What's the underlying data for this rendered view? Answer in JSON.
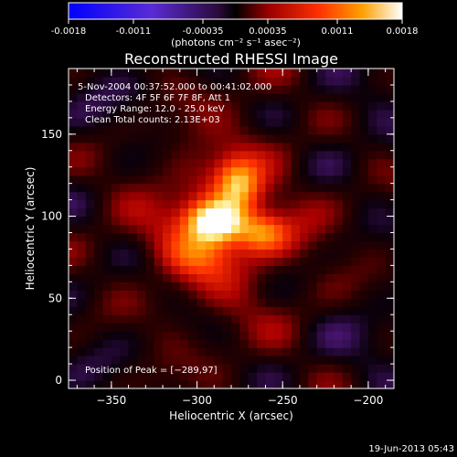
{
  "colorbar": {
    "tick_labels": [
      "-0.0018",
      "-0.0011",
      "-0.00035",
      "0.00035",
      "0.0011",
      "0.0018"
    ],
    "tick_values": [
      -0.0018,
      -0.0011,
      -0.00035,
      0.00035,
      0.0011,
      0.0018
    ],
    "range": [
      -0.0018,
      0.0018
    ],
    "units_label": "(photons cm⁻² s⁻¹ asec⁻²)"
  },
  "chart_data": {
    "type": "heatmap",
    "title": "Reconstructed RHESSI Image",
    "xlabel": "Heliocentric X (arcsec)",
    "ylabel": "Heliocentric Y (arcsec)",
    "xlim": [
      -375,
      -185
    ],
    "ylim": [
      -5,
      190
    ],
    "x_ticks": [
      -350,
      -300,
      -250,
      -200
    ],
    "y_ticks": [
      0,
      50,
      100,
      150
    ],
    "x_tick_labels": [
      "−350",
      "−300",
      "−250",
      "−200"
    ],
    "y_tick_labels": [
      "0",
      "50",
      "100",
      "150"
    ],
    "grid": false,
    "colormap": "RHESSI color table (blue → purple → black → red → orange → yellow → white)",
    "peak": {
      "x": -289,
      "y": 97
    },
    "info_lines": [
      "5-Nov-2004 00:37:52.000 to 00:41:02.000",
      "Detectors: 4F 5F 6F 7F 8F, Att 1",
      "Energy Range: 12.0 - 25.0 keV",
      "Clean     Total counts: 2.13E+03"
    ],
    "peak_label": "Position of Peak = [−289,97]"
  },
  "timestamp": "19-Jun-2013 05:43"
}
